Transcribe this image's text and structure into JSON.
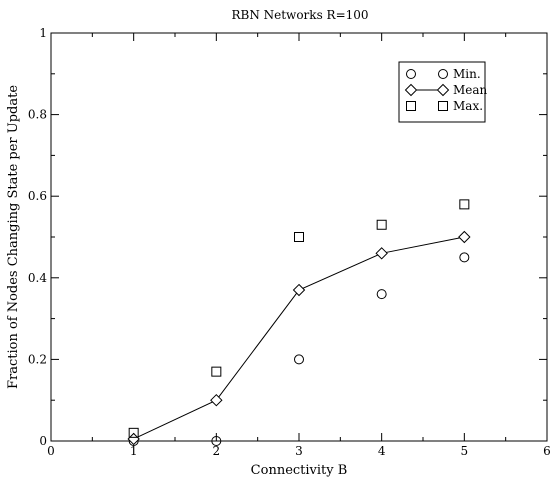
{
  "chart_data": {
    "type": "scatter",
    "title": "RBN Networks R=100",
    "xlabel": "Connectivity B",
    "ylabel": "Fraction of Nodes Changing State per Update",
    "xlim": [
      0,
      6
    ],
    "ylim": [
      0,
      1
    ],
    "x_ticks": [
      "0",
      "1",
      "2",
      "3",
      "4",
      "5",
      "6"
    ],
    "y_ticks": [
      "0",
      "0.2",
      "0.4",
      "0.6",
      "0.8",
      "1"
    ],
    "grid": false,
    "legend_position": "top-right",
    "series": [
      {
        "name": "Min.",
        "marker": "circle",
        "line": false,
        "x": [
          1,
          2,
          3,
          4,
          5
        ],
        "y": [
          0.0,
          0.0,
          0.2,
          0.36,
          0.45
        ]
      },
      {
        "name": "Mean",
        "marker": "diamond",
        "line": true,
        "x": [
          1,
          2,
          3,
          4,
          5
        ],
        "y": [
          0.005,
          0.1,
          0.37,
          0.46,
          0.5
        ]
      },
      {
        "name": "Max.",
        "marker": "square",
        "line": false,
        "x": [
          1,
          2,
          3,
          4,
          5
        ],
        "y": [
          0.02,
          0.17,
          0.5,
          0.53,
          0.58
        ]
      }
    ]
  }
}
